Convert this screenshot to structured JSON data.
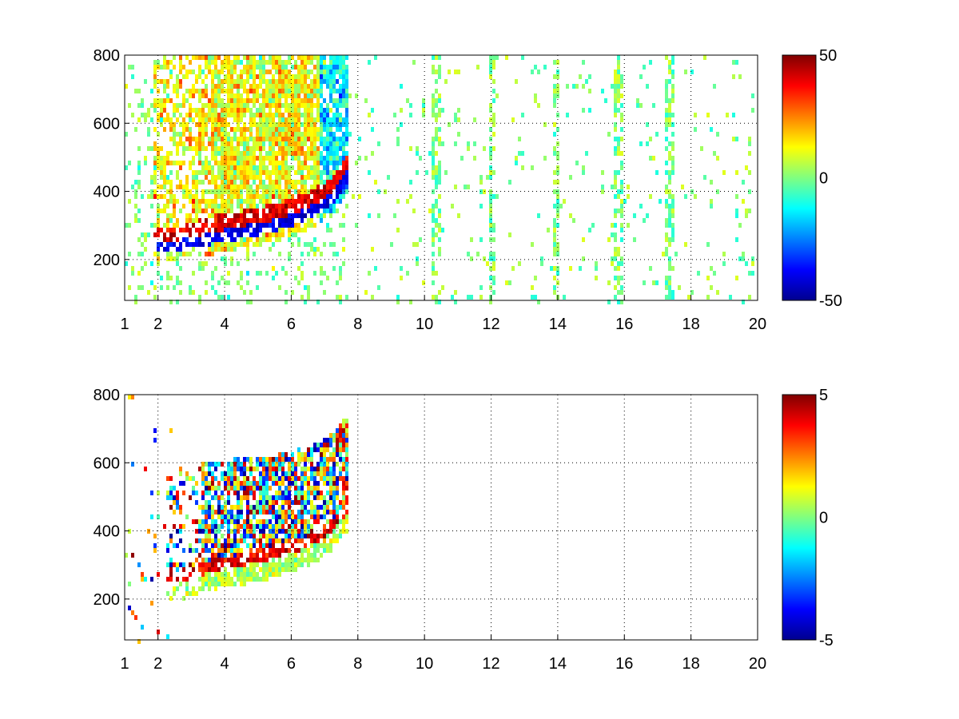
{
  "chart_data": [
    {
      "type": "heatmap",
      "title": "",
      "xlabel": "",
      "ylabel": "",
      "xlim": [
        1,
        20
      ],
      "ylim": [
        80,
        800
      ],
      "x_ticks": [
        "1",
        "2",
        "4",
        "6",
        "8",
        "10",
        "12",
        "14",
        "16",
        "18",
        "20"
      ],
      "x_tick_values": [
        1,
        2,
        4,
        6,
        8,
        10,
        12,
        14,
        16,
        18,
        20
      ],
      "y_ticks": [
        "200",
        "400",
        "600",
        "800"
      ],
      "y_tick_values": [
        200,
        400,
        600,
        800
      ],
      "grid": true,
      "colormap": "jet",
      "colorbar": {
        "min": -50,
        "max": 50,
        "ticks": [
          "50",
          "0",
          "-50"
        ],
        "tick_values": [
          50,
          0,
          -50
        ]
      },
      "features": {
        "signal_region_x": [
          1.8,
          7.7
        ],
        "curved_band": {
          "description_values": [
            [
              2.5,
              235
            ],
            [
              3.5,
              260
            ],
            [
              4.5,
              280
            ],
            [
              5.5,
              300
            ],
            [
              6.5,
              335
            ],
            [
              7.2,
              380
            ],
            [
              7.7,
              450
            ]
          ],
          "inner_value": 40,
          "outer_value": -40
        },
        "scatter_columns_x": [
          10.3,
          12.0,
          13.9,
          15.8,
          17.3
        ],
        "scatter_value_range": [
          -10,
          10
        ]
      }
    },
    {
      "type": "heatmap",
      "title": "",
      "xlabel": "",
      "ylabel": "",
      "xlim": [
        1,
        20
      ],
      "ylim": [
        80,
        800
      ],
      "x_ticks": [
        "1",
        "2",
        "4",
        "6",
        "8",
        "10",
        "12",
        "14",
        "16",
        "18",
        "20"
      ],
      "x_tick_values": [
        1,
        2,
        4,
        6,
        8,
        10,
        12,
        14,
        16,
        18,
        20
      ],
      "y_ticks": [
        "200",
        "400",
        "600",
        "800"
      ],
      "y_tick_values": [
        200,
        400,
        600,
        800
      ],
      "grid": true,
      "colormap": "jet",
      "colorbar": {
        "min": -5,
        "max": 5,
        "ticks": [
          "5",
          "0",
          "-5"
        ],
        "tick_values": [
          5,
          0,
          -5
        ]
      },
      "features": {
        "signal_region_x": [
          2.2,
          7.7
        ],
        "curved_band": {
          "description_values": [
            [
              2.5,
              235
            ],
            [
              3.5,
              265
            ],
            [
              4.5,
              285
            ],
            [
              5.5,
              305
            ],
            [
              6.5,
              340
            ],
            [
              7.2,
              385
            ],
            [
              7.7,
              450
            ]
          ],
          "inner_value": 4,
          "outer_value": 0.5
        },
        "noisy_interior_value_range": [
          -5,
          5
        ]
      }
    }
  ],
  "colors": {
    "jet_stops": [
      "#00008f",
      "#0000ff",
      "#00ffff",
      "#80ff80",
      "#ffff00",
      "#ff0000",
      "#800000"
    ]
  }
}
